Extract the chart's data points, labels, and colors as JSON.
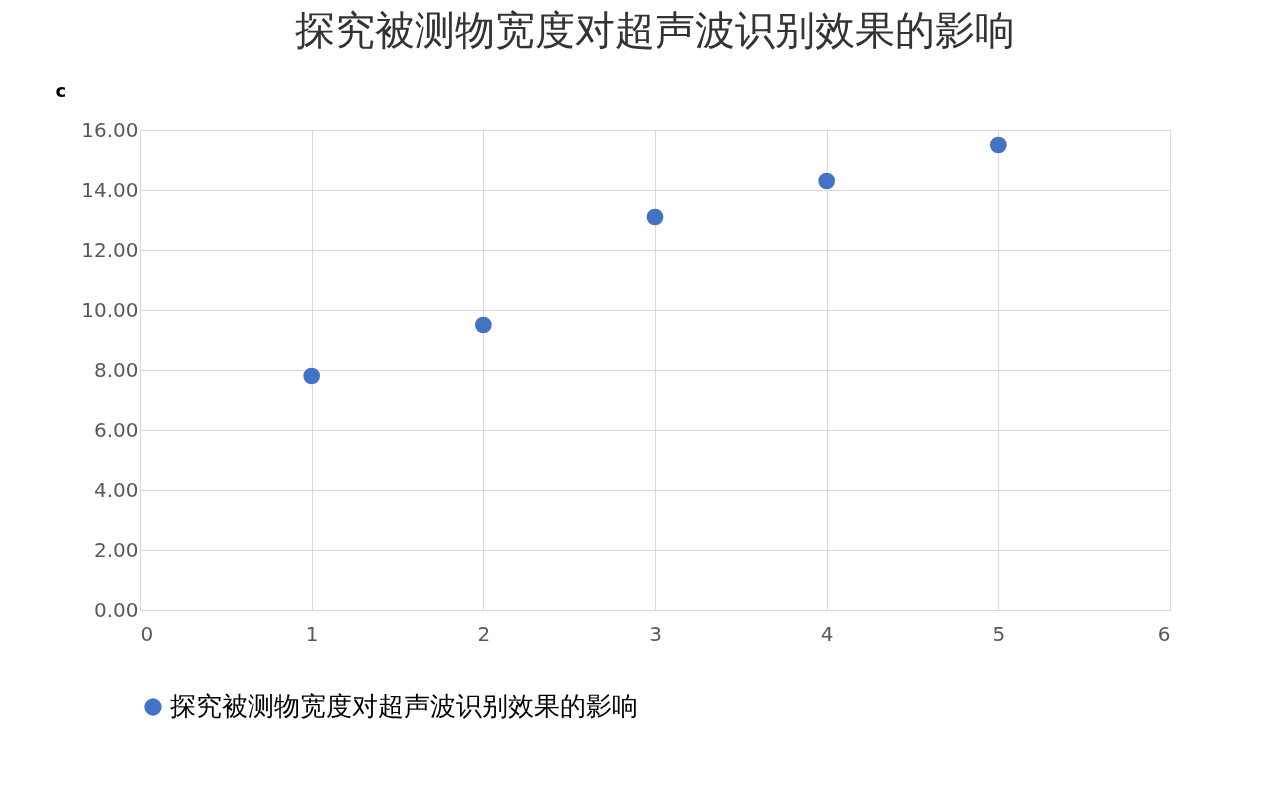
{
  "chart_data": {
    "type": "scatter",
    "title": "探究被测物宽度对超声波识别效果的影响",
    "ylabel": "c",
    "x": [
      1,
      2,
      3,
      4,
      5
    ],
    "series": [
      {
        "name": "探究被测物宽度对超声波识别效果的影响",
        "color": "#4472c4",
        "values": [
          7.8,
          9.5,
          13.1,
          14.3,
          15.5
        ]
      }
    ],
    "xlim": [
      0,
      6
    ],
    "xticks": [
      0,
      1,
      2,
      3,
      4,
      5,
      6
    ],
    "ylim": [
      0,
      16
    ],
    "yticks": [
      {
        "value": 0,
        "label": "0.00"
      },
      {
        "value": 2,
        "label": "2.00"
      },
      {
        "value": 4,
        "label": "4.00"
      },
      {
        "value": 6,
        "label": "6.00"
      },
      {
        "value": 8,
        "label": "8.00"
      },
      {
        "value": 10,
        "label": "10.00"
      },
      {
        "value": 12,
        "label": "12.00"
      },
      {
        "value": 14,
        "label": "14.00"
      },
      {
        "value": 16,
        "label": "16.00"
      }
    ],
    "grid": true,
    "legend": "bottom",
    "marker": "circle"
  }
}
